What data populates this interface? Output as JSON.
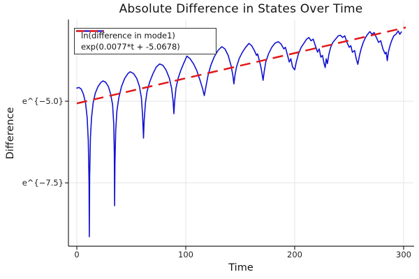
{
  "title": "Absolute Difference in States Over Time",
  "axes": {
    "x": {
      "label": "Time",
      "ticks": [
        "0",
        "100",
        "200",
        "300"
      ]
    },
    "y": {
      "label": "Difference",
      "ticks": [
        "e^{−5.0}",
        "e^{−7.5}"
      ]
    }
  },
  "legend": {
    "items": [
      {
        "label": "ln(difference in mode1)",
        "color": "#1212d0",
        "style": "solid"
      },
      {
        "label": "exp(0.0077*t + -5.0678)",
        "color": "#e01919",
        "style": "dashed"
      }
    ]
  },
  "colors": {
    "series_blue": "#1212d0",
    "fit_red": "#e01919",
    "grid": "#e5e5e5",
    "spine": "#262626"
  },
  "chart_data": {
    "type": "line",
    "title": "Absolute Difference in States Over Time",
    "xlabel": "Time",
    "ylabel": "Difference",
    "x_scale": "linear",
    "y_scale": "ln",
    "xlim": [
      -7.7,
      309
    ],
    "ylim_ln": [
      -9.44,
      -2.5
    ],
    "x_ticks": [
      0,
      100,
      200,
      300
    ],
    "y_ticks_ln": [
      -5.0,
      -7.5
    ],
    "y_tick_labels": [
      "e^{−5.0}",
      "e^{−7.5}"
    ],
    "grid": true,
    "legend_position": "top-left",
    "series": [
      {
        "name": "ln(difference in mode1)",
        "kind": "data",
        "color": "#1212d0",
        "x": [
          0,
          2,
          4,
          6,
          8,
          9.5,
          10.5,
          11.2,
          11.5,
          11.8,
          12.5,
          13.5,
          15,
          17,
          19.5,
          22,
          24,
          26.5,
          29,
          31,
          32.8,
          33.9,
          34.4,
          34.7,
          35,
          35.7,
          36.8,
          38.5,
          41,
          44,
          47,
          49,
          52,
          55,
          57.5,
          59.3,
          60.4,
          61.2,
          61.8,
          63,
          64.5,
          67,
          70,
          73,
          76,
          79,
          82,
          85,
          87,
          88.4,
          89.1,
          89.8,
          91,
          93,
          95.5,
          98,
          101,
          104,
          107,
          110,
          113,
          115.5,
          117,
          118.5,
          120.5,
          123,
          126,
          129.5,
          133,
          136,
          139,
          141.5,
          143.2,
          144.2,
          145.2,
          146.6,
          149,
          152,
          155,
          158,
          160.5,
          163,
          165,
          166,
          167.5,
          169,
          170,
          171,
          172,
          173.5,
          176,
          179,
          182,
          185,
          187.5,
          190,
          191.5,
          193.5,
          195,
          196.5,
          198,
          200,
          201.5,
          203.5,
          206,
          209,
          211,
          213,
          215,
          217,
          219,
          221,
          222.5,
          224,
          225.5,
          227,
          228,
          229,
          230,
          231.5,
          233,
          235,
          237.5,
          240,
          242,
          244,
          246,
          248,
          250,
          251.5,
          253,
          255,
          256.5,
          258,
          259.5,
          261,
          263,
          265,
          267,
          269,
          271,
          273,
          275,
          277,
          279,
          281,
          283,
          284,
          285,
          286,
          287.5,
          289,
          291,
          293,
          295,
          296.5,
          298
        ],
        "y_ln": [
          -4.6,
          -4.58,
          -4.63,
          -4.78,
          -5.05,
          -5.5,
          -6.2,
          -7.5,
          -9.15,
          -7.3,
          -6.1,
          -5.5,
          -5.05,
          -4.75,
          -4.55,
          -4.43,
          -4.38,
          -4.42,
          -4.55,
          -4.78,
          -5.1,
          -5.7,
          -6.6,
          -8.2,
          -6.9,
          -5.9,
          -5.3,
          -4.9,
          -4.55,
          -4.3,
          -4.15,
          -4.1,
          -4.15,
          -4.3,
          -4.55,
          -4.9,
          -5.45,
          -6.13,
          -5.6,
          -5.05,
          -4.7,
          -4.4,
          -4.15,
          -3.95,
          -3.86,
          -3.9,
          -4.05,
          -4.3,
          -4.6,
          -5.0,
          -5.38,
          -5.0,
          -4.6,
          -4.3,
          -4.05,
          -3.85,
          -3.62,
          -3.7,
          -3.85,
          -4.05,
          -4.35,
          -4.62,
          -4.83,
          -4.55,
          -4.2,
          -3.9,
          -3.65,
          -3.45,
          -3.33,
          -3.4,
          -3.6,
          -3.9,
          -4.2,
          -4.47,
          -4.2,
          -3.95,
          -3.7,
          -3.5,
          -3.35,
          -3.23,
          -3.3,
          -3.45,
          -3.6,
          -3.55,
          -3.75,
          -3.95,
          -4.15,
          -4.36,
          -4.1,
          -3.8,
          -3.55,
          -3.35,
          -3.22,
          -3.18,
          -3.25,
          -3.4,
          -3.35,
          -3.6,
          -3.8,
          -3.7,
          -3.95,
          -4.04,
          -3.8,
          -3.55,
          -3.35,
          -3.2,
          -3.1,
          -3.05,
          -3.15,
          -3.1,
          -3.3,
          -3.5,
          -3.4,
          -3.65,
          -3.6,
          -3.85,
          -3.97,
          -3.7,
          -3.85,
          -3.55,
          -3.35,
          -3.2,
          -3.1,
          -3.0,
          -2.98,
          -3.05,
          -3.0,
          -3.2,
          -3.35,
          -3.3,
          -3.5,
          -3.45,
          -3.7,
          -3.87,
          -3.6,
          -3.4,
          -3.2,
          -3.05,
          -2.95,
          -2.87,
          -2.95,
          -2.9,
          -3.05,
          -3.2,
          -3.15,
          -3.4,
          -3.55,
          -3.5,
          -3.76,
          -3.5,
          -3.3,
          -3.15,
          -3.0,
          -2.95,
          -2.85,
          -2.95,
          -2.88
        ]
      },
      {
        "name": "exp(0.0077*t + -5.0678)",
        "kind": "fit-line",
        "color": "#e01919",
        "dashed": true,
        "slope": 0.0077,
        "intercept": -5.0678,
        "t_range": [
          0,
          302
        ]
      }
    ]
  }
}
